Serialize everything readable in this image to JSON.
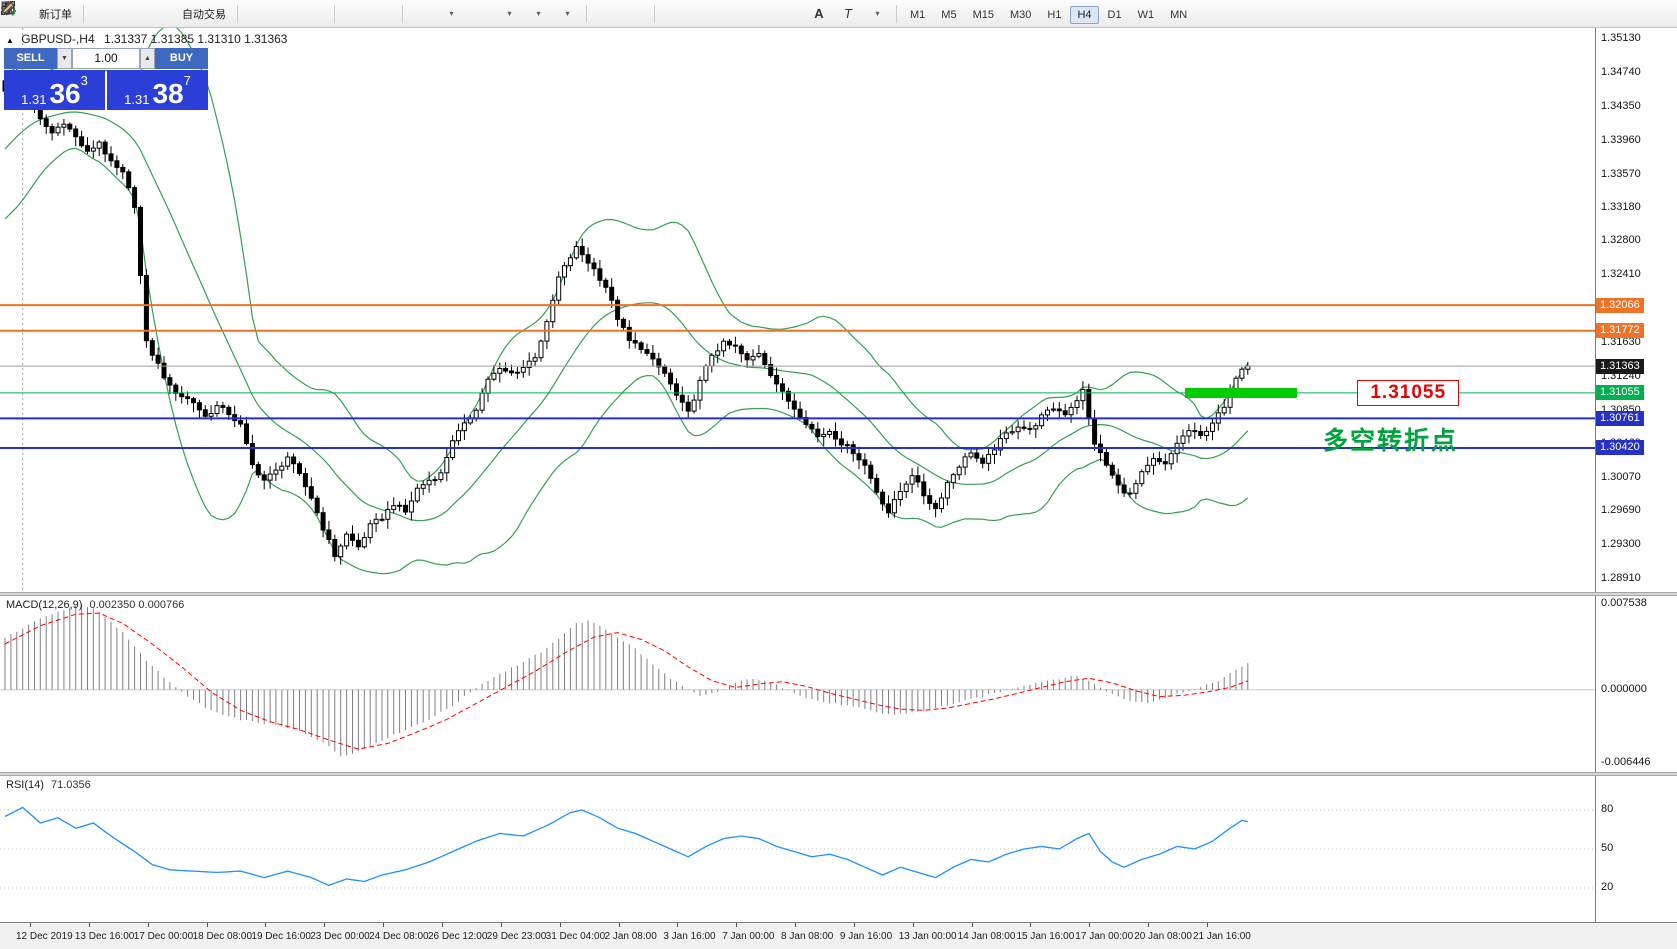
{
  "toolbar": {
    "new_order_label": "新订单",
    "autotrading_label": "自动交易",
    "timeframes": [
      "M1",
      "M5",
      "M15",
      "M30",
      "H1",
      "H4",
      "D1",
      "W1",
      "MN"
    ],
    "active_timeframe": "H4"
  },
  "trade_panel": {
    "sell_label": "SELL",
    "buy_label": "BUY",
    "volume": "1.00",
    "bid": {
      "prefix": "1.31",
      "big": "36",
      "sup": "3"
    },
    "ask": {
      "prefix": "1.31",
      "big": "38",
      "sup": "7"
    }
  },
  "chart_data": {
    "type": "candlestick+indicators",
    "title_symbol": "GBPUSD-,H4",
    "title_ohlc": "1.31337 1.31385 1.31310 1.31363",
    "bars": 212,
    "close_waypoints": [
      [
        0,
        1.3455
      ],
      [
        2,
        1.3468
      ],
      [
        4,
        1.3452
      ],
      [
        6,
        1.342
      ],
      [
        8,
        1.3405
      ],
      [
        10,
        1.3418
      ],
      [
        12,
        1.34
      ],
      [
        14,
        1.3382
      ],
      [
        16,
        1.3395
      ],
      [
        18,
        1.337
      ],
      [
        20,
        1.3358
      ],
      [
        22,
        1.3322
      ],
      [
        23,
        1.324
      ],
      [
        24,
        1.3163
      ],
      [
        26,
        1.3138
      ],
      [
        28,
        1.3112
      ],
      [
        30,
        1.3102
      ],
      [
        32,
        1.3095
      ],
      [
        34,
        1.3078
      ],
      [
        36,
        1.309
      ],
      [
        38,
        1.3082
      ],
      [
        40,
        1.3068
      ],
      [
        42,
        1.3022
      ],
      [
        44,
        1.3005
      ],
      [
        46,
        1.3015
      ],
      [
        48,
        1.3032
      ],
      [
        50,
        1.301
      ],
      [
        52,
        1.2985
      ],
      [
        54,
        1.295
      ],
      [
        56,
        1.2918
      ],
      [
        58,
        1.2942
      ],
      [
        60,
        1.2928
      ],
      [
        62,
        1.2952
      ],
      [
        64,
        1.2962
      ],
      [
        66,
        1.2978
      ],
      [
        68,
        1.2968
      ],
      [
        70,
        1.2995
      ],
      [
        72,
        1.3005
      ],
      [
        74,
        1.3012
      ],
      [
        76,
        1.3052
      ],
      [
        78,
        1.3068
      ],
      [
        80,
        1.3088
      ],
      [
        82,
        1.3122
      ],
      [
        84,
        1.3132
      ],
      [
        86,
        1.3128
      ],
      [
        88,
        1.3135
      ],
      [
        90,
        1.3148
      ],
      [
        92,
        1.3185
      ],
      [
        94,
        1.3238
      ],
      [
        96,
        1.3262
      ],
      [
        97,
        1.3272
      ],
      [
        98,
        1.3265
      ],
      [
        100,
        1.3248
      ],
      [
        102,
        1.3228
      ],
      [
        104,
        1.3192
      ],
      [
        106,
        1.3165
      ],
      [
        108,
        1.3158
      ],
      [
        110,
        1.3142
      ],
      [
        112,
        1.3128
      ],
      [
        114,
        1.3102
      ],
      [
        116,
        1.3082
      ],
      [
        118,
        1.3118
      ],
      [
        120,
        1.315
      ],
      [
        122,
        1.3162
      ],
      [
        124,
        1.3158
      ],
      [
        126,
        1.3142
      ],
      [
        128,
        1.3152
      ],
      [
        130,
        1.3128
      ],
      [
        132,
        1.3105
      ],
      [
        134,
        1.3088
      ],
      [
        136,
        1.3072
      ],
      [
        138,
        1.3055
      ],
      [
        140,
        1.3062
      ],
      [
        142,
        1.3048
      ],
      [
        144,
        1.3038
      ],
      [
        146,
        1.3022
      ],
      [
        148,
        1.2992
      ],
      [
        150,
        1.2968
      ],
      [
        152,
        1.2992
      ],
      [
        154,
        1.3012
      ],
      [
        156,
        1.2988
      ],
      [
        158,
        1.2972
      ],
      [
        160,
        1.3002
      ],
      [
        162,
        1.3022
      ],
      [
        164,
        1.3038
      ],
      [
        166,
        1.3022
      ],
      [
        168,
        1.3042
      ],
      [
        170,
        1.3058
      ],
      [
        172,
        1.3068
      ],
      [
        174,
        1.3062
      ],
      [
        176,
        1.3078
      ],
      [
        178,
        1.3088
      ],
      [
        180,
        1.3082
      ],
      [
        182,
        1.3098
      ],
      [
        183,
        1.3108
      ],
      [
        184,
        1.3075
      ],
      [
        185,
        1.3048
      ],
      [
        187,
        1.3022
      ],
      [
        189,
        1.2998
      ],
      [
        191,
        1.2988
      ],
      [
        193,
        1.3012
      ],
      [
        195,
        1.3028
      ],
      [
        197,
        1.3022
      ],
      [
        199,
        1.3048
      ],
      [
        201,
        1.3062
      ],
      [
        203,
        1.3055
      ],
      [
        205,
        1.3072
      ],
      [
        207,
        1.3088
      ],
      [
        209,
        1.3125
      ],
      [
        210,
        1.3135
      ],
      [
        211,
        1.31363
      ]
    ],
    "bollinger": {
      "period": 20,
      "deviation": 2
    },
    "vline_bar": 3,
    "price_axis": {
      "p_top": 1.3526,
      "p_bottom": 1.2876,
      "labels": [
        "1.35130",
        "1.34740",
        "1.34350",
        "1.33960",
        "1.33570",
        "1.33180",
        "1.32800",
        "1.32410",
        "1.32020",
        "1.31630",
        "1.31240",
        "1.30850",
        "1.30460",
        "1.30070",
        "1.29690",
        "1.29300",
        "1.28910"
      ]
    },
    "hlines": [
      {
        "price": 1.32066,
        "label": "1.32066",
        "color": "#ee7326",
        "width": 2
      },
      {
        "price": 1.31772,
        "label": "1.31772",
        "color": "#ee7326",
        "width": 2
      },
      {
        "price": 1.31055,
        "label": "1.31055",
        "color": "#00b050",
        "width": 1
      },
      {
        "price": 1.30761,
        "label": "1.30761",
        "color": "#2430c8",
        "width": 2
      },
      {
        "price": 1.3042,
        "label": "1.30420",
        "color": "#2430c8",
        "width": 2
      }
    ],
    "bid_line": {
      "price": 1.31363,
      "label": "1.31363",
      "line_color": "#9e9e9e",
      "tag_color": "#1a1a1a"
    },
    "annotations": {
      "highlight_rect": {
        "price": 1.31057,
        "x0_frac": 0.743,
        "x1_frac": 0.813,
        "color": "#00cc00"
      },
      "price_callout": {
        "text": "1.31055",
        "x_frac": 0.851,
        "price": 1.31055,
        "color": "#ef0000"
      },
      "cn_note": {
        "text": "多空转折点",
        "x_frac": 0.8295,
        "price": 1.3056,
        "color": "#00a33e"
      }
    },
    "macd": {
      "title": "MACD(12,26,9)",
      "values_text": "0.002350 0.000766",
      "axis": {
        "labels": [
          "0.007538",
          "0.000000",
          "-0.006446"
        ],
        "values": [
          0.007538,
          0,
          -0.006446
        ],
        "v_top": 0.0082,
        "v_bottom": -0.0072
      },
      "hist_waypoints": [
        [
          0,
          0.0045
        ],
        [
          5,
          0.006
        ],
        [
          10,
          0.007
        ],
        [
          13,
          0.0075
        ],
        [
          16,
          0.0068
        ],
        [
          20,
          0.005
        ],
        [
          24,
          0.0026
        ],
        [
          28,
          0.0006
        ],
        [
          30,
          -0.0002
        ],
        [
          34,
          -0.0016
        ],
        [
          38,
          -0.0024
        ],
        [
          42,
          -0.0028
        ],
        [
          46,
          -0.0031
        ],
        [
          50,
          -0.0036
        ],
        [
          54,
          -0.0046
        ],
        [
          57,
          -0.0058
        ],
        [
          60,
          -0.0054
        ],
        [
          64,
          -0.0044
        ],
        [
          68,
          -0.0035
        ],
        [
          72,
          -0.0026
        ],
        [
          76,
          -0.0014
        ],
        [
          80,
          0.0002
        ],
        [
          84,
          0.0014
        ],
        [
          88,
          0.0024
        ],
        [
          92,
          0.0036
        ],
        [
          95,
          0.005
        ],
        [
          97,
          0.0058
        ],
        [
          99,
          0.006
        ],
        [
          101,
          0.0056
        ],
        [
          104,
          0.0046
        ],
        [
          107,
          0.0036
        ],
        [
          110,
          0.0022
        ],
        [
          113,
          0.001
        ],
        [
          116,
          0.0
        ],
        [
          118,
          -0.0006
        ],
        [
          121,
          -0.0002
        ],
        [
          124,
          0.0006
        ],
        [
          127,
          0.001
        ],
        [
          130,
          0.0006
        ],
        [
          133,
          0.0
        ],
        [
          136,
          -0.0007
        ],
        [
          139,
          -0.0011
        ],
        [
          142,
          -0.0013
        ],
        [
          145,
          -0.0016
        ],
        [
          148,
          -0.002
        ],
        [
          151,
          -0.0022
        ],
        [
          154,
          -0.002
        ],
        [
          158,
          -0.0016
        ],
        [
          162,
          -0.0011
        ],
        [
          166,
          -0.0006
        ],
        [
          170,
          0.0
        ],
        [
          174,
          0.0005
        ],
        [
          178,
          0.0009
        ],
        [
          182,
          0.0012
        ],
        [
          184,
          0.0008
        ],
        [
          186,
          0.0002
        ],
        [
          188,
          -0.0004
        ],
        [
          191,
          -0.001
        ],
        [
          194,
          -0.0011
        ],
        [
          197,
          -0.0007
        ],
        [
          200,
          -0.0002
        ],
        [
          203,
          0.0002
        ],
        [
          206,
          0.0008
        ],
        [
          208,
          0.0014
        ],
        [
          210,
          0.002
        ],
        [
          211,
          0.00235
        ]
      ],
      "signal_waypoints": [
        [
          0,
          0.004
        ],
        [
          6,
          0.0056
        ],
        [
          12,
          0.0066
        ],
        [
          16,
          0.0067
        ],
        [
          20,
          0.0058
        ],
        [
          25,
          0.004
        ],
        [
          30,
          0.002
        ],
        [
          35,
          -0.0002
        ],
        [
          40,
          -0.0018
        ],
        [
          45,
          -0.0028
        ],
        [
          50,
          -0.0035
        ],
        [
          55,
          -0.0044
        ],
        [
          60,
          -0.0052
        ],
        [
          65,
          -0.0047
        ],
        [
          70,
          -0.0037
        ],
        [
          75,
          -0.0026
        ],
        [
          80,
          -0.0012
        ],
        [
          85,
          0.0002
        ],
        [
          90,
          0.0016
        ],
        [
          95,
          0.0032
        ],
        [
          100,
          0.0046
        ],
        [
          104,
          0.005
        ],
        [
          108,
          0.0044
        ],
        [
          112,
          0.0034
        ],
        [
          116,
          0.002
        ],
        [
          120,
          0.0008
        ],
        [
          124,
          0.0002
        ],
        [
          128,
          0.0005
        ],
        [
          132,
          0.0007
        ],
        [
          136,
          0.0003
        ],
        [
          140,
          -0.0003
        ],
        [
          144,
          -0.0008
        ],
        [
          148,
          -0.0013
        ],
        [
          152,
          -0.0017
        ],
        [
          156,
          -0.0018
        ],
        [
          160,
          -0.0016
        ],
        [
          164,
          -0.0012
        ],
        [
          168,
          -0.0008
        ],
        [
          172,
          -0.0003
        ],
        [
          176,
          0.0002
        ],
        [
          180,
          0.0007
        ],
        [
          184,
          0.001
        ],
        [
          188,
          0.0006
        ],
        [
          192,
          -0.0001
        ],
        [
          196,
          -0.0006
        ],
        [
          200,
          -0.0005
        ],
        [
          204,
          -0.0002
        ],
        [
          208,
          0.0002
        ],
        [
          211,
          0.000766
        ]
      ],
      "colors": {
        "hist": "#808080",
        "signal": "#ff0000"
      }
    },
    "rsi": {
      "title": "RSI(14)",
      "value_text": "71.0356",
      "levels": [
        80,
        50,
        20
      ],
      "axis_labels": [
        "80",
        "50",
        "20"
      ],
      "color": "#1E90FF",
      "waypoints": [
        [
          0,
          75
        ],
        [
          3,
          82
        ],
        [
          6,
          70
        ],
        [
          9,
          74
        ],
        [
          12,
          66
        ],
        [
          15,
          70
        ],
        [
          18,
          60
        ],
        [
          22,
          48
        ],
        [
          25,
          38
        ],
        [
          28,
          34
        ],
        [
          32,
          33
        ],
        [
          36,
          32
        ],
        [
          40,
          33
        ],
        [
          44,
          28
        ],
        [
          48,
          33
        ],
        [
          52,
          28
        ],
        [
          55,
          22
        ],
        [
          58,
          27
        ],
        [
          61,
          25
        ],
        [
          64,
          30
        ],
        [
          68,
          34
        ],
        [
          72,
          40
        ],
        [
          76,
          48
        ],
        [
          80,
          56
        ],
        [
          84,
          62
        ],
        [
          88,
          60
        ],
        [
          92,
          68
        ],
        [
          96,
          78
        ],
        [
          98,
          80
        ],
        [
          101,
          74
        ],
        [
          104,
          66
        ],
        [
          107,
          62
        ],
        [
          110,
          56
        ],
        [
          113,
          50
        ],
        [
          116,
          44
        ],
        [
          119,
          52
        ],
        [
          122,
          58
        ],
        [
          125,
          60
        ],
        [
          128,
          58
        ],
        [
          131,
          52
        ],
        [
          134,
          48
        ],
        [
          137,
          44
        ],
        [
          140,
          46
        ],
        [
          143,
          42
        ],
        [
          146,
          36
        ],
        [
          149,
          30
        ],
        [
          152,
          36
        ],
        [
          155,
          32
        ],
        [
          158,
          28
        ],
        [
          161,
          36
        ],
        [
          164,
          42
        ],
        [
          167,
          40
        ],
        [
          170,
          46
        ],
        [
          173,
          50
        ],
        [
          176,
          52
        ],
        [
          179,
          50
        ],
        [
          182,
          58
        ],
        [
          184,
          62
        ],
        [
          186,
          48
        ],
        [
          188,
          40
        ],
        [
          190,
          36
        ],
        [
          193,
          42
        ],
        [
          196,
          46
        ],
        [
          199,
          52
        ],
        [
          202,
          50
        ],
        [
          205,
          56
        ],
        [
          208,
          66
        ],
        [
          210,
          72
        ],
        [
          211,
          71.04
        ]
      ]
    },
    "time_axis": {
      "labels": [
        "12 Dec 2019",
        "13 Dec 16:00",
        "17 Dec 00:00",
        "18 Dec 08:00",
        "19 Dec 16:00",
        "23 Dec 00:00",
        "24 Dec 08:00",
        "26 Dec 12:00",
        "29 Dec 23:00",
        "31 Dec 04:00",
        "2 Jan 08:00",
        "3 Jan 16:00",
        "7 Jan 00:00",
        "8 Jan 08:00",
        "9 Jan 16:00",
        "13 Jan 00:00",
        "14 Jan 08:00",
        "15 Jan 16:00",
        "17 Jan 00:00",
        "20 Jan 08:00",
        "21 Jan 16:00"
      ]
    },
    "colors": {
      "bull_candle": "#ffffff",
      "bear_candle": "#000000",
      "candle_outline": "#000000",
      "bollinger": "#35a053",
      "background": "#ffffff",
      "buy_sell_header": "#3f68c0",
      "price_box": "#2a3fd8"
    }
  }
}
